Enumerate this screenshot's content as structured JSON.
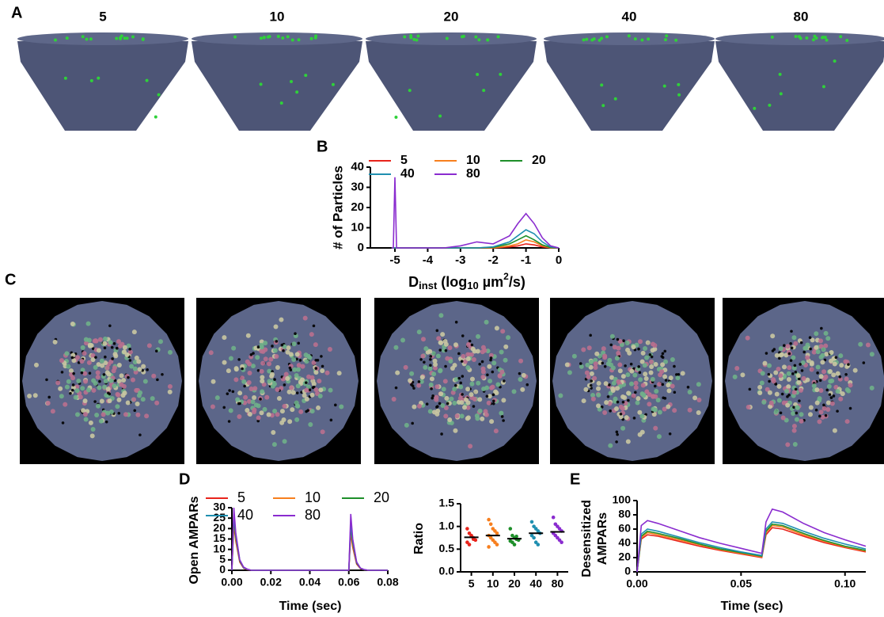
{
  "figure": {
    "panel_labels": [
      "A",
      "B",
      "C",
      "D",
      "E"
    ],
    "image_labels": [
      "5",
      "10",
      "20",
      "40",
      "80"
    ]
  },
  "chart_data": [
    {
      "type": "line",
      "ylabel": "# of Particles",
      "xlabel": [
        "D",
        "inst",
        " (log",
        "10",
        " µm",
        "2",
        "/s)"
      ],
      "x": [
        -5.1,
        -5.05,
        -5.0,
        -4.95,
        -4.9,
        -4.5,
        -4,
        -3.5,
        -3,
        -2.5,
        -2,
        -1.5,
        -1.25,
        -1,
        -0.75,
        -0.5,
        -0.25,
        0
      ],
      "xlim": [
        -5.75,
        0
      ],
      "xticks": [
        -5,
        -4,
        -3,
        -2,
        -1,
        0
      ],
      "ylim": [
        0,
        40
      ],
      "yticks": [
        0,
        10,
        20,
        30,
        40
      ],
      "series": [
        {
          "name": "5",
          "color": "#e8241c",
          "values": [
            0,
            0,
            0,
            0,
            0,
            0,
            0,
            0,
            0,
            0,
            0,
            0.5,
            1,
            2,
            1.5,
            0.5,
            0,
            0
          ]
        },
        {
          "name": "10",
          "color": "#f77f1e",
          "values": [
            0,
            0,
            0,
            0,
            0,
            0,
            0,
            0,
            0,
            0,
            0,
            1,
            2,
            4,
            3,
            1,
            0,
            0
          ]
        },
        {
          "name": "20",
          "color": "#1e8f2a",
          "values": [
            0,
            0,
            0,
            0,
            0,
            0,
            0,
            0,
            0,
            0,
            0.3,
            2,
            4,
            6,
            4,
            1.5,
            0.2,
            0
          ]
        },
        {
          "name": "40",
          "color": "#1f8fb0",
          "values": [
            0,
            0,
            0,
            0,
            0,
            0,
            0,
            0,
            0,
            0,
            0.5,
            3,
            6,
            9,
            7,
            3,
            0.5,
            0
          ]
        },
        {
          "name": "80",
          "color": "#8a2ccf",
          "values": [
            0,
            0,
            35,
            0,
            0,
            0,
            0,
            0,
            1,
            3,
            2,
            6,
            12,
            17,
            12,
            5,
            1,
            0
          ]
        }
      ]
    },
    {
      "type": "line",
      "ylabel": "Open AMPARs",
      "xlabel": "Time (sec)",
      "x": [
        0,
        0.001,
        0.002,
        0.004,
        0.006,
        0.008,
        0.01,
        0.06,
        0.061,
        0.062,
        0.064,
        0.066,
        0.068,
        0.07,
        0.08
      ],
      "xlim": [
        0,
        0.08
      ],
      "xticks": [
        {
          "value": 0,
          "label": "0.00"
        },
        0.02,
        0.04,
        0.06,
        0.08
      ],
      "ylim": [
        0,
        30
      ],
      "yticks": [
        0,
        5,
        10,
        15,
        20,
        25,
        30
      ],
      "series": [
        {
          "name": "5",
          "color": "#e8241c",
          "values": [
            0,
            22,
            14,
            4,
            1,
            0.3,
            0,
            0,
            18,
            11,
            3,
            0.8,
            0.2,
            0,
            0
          ]
        },
        {
          "name": "10",
          "color": "#f77f1e",
          "values": [
            0,
            24,
            15,
            4.5,
            1.2,
            0.4,
            0,
            0,
            20,
            12,
            3.5,
            0.9,
            0.2,
            0,
            0
          ]
        },
        {
          "name": "20",
          "color": "#1e8f2a",
          "values": [
            0,
            25,
            16,
            4.5,
            1.2,
            0.4,
            0,
            0,
            21,
            13,
            3.5,
            0.9,
            0.2,
            0,
            0
          ]
        },
        {
          "name": "40",
          "color": "#1f8fb0",
          "values": [
            0,
            27,
            17,
            5,
            1.3,
            0.4,
            0,
            0,
            23,
            14,
            4,
            1,
            0.3,
            0,
            0
          ]
        },
        {
          "name": "80",
          "color": "#8a2ccf",
          "values": [
            0,
            30,
            18,
            5,
            1.5,
            0.5,
            0,
            0,
            27,
            15,
            4,
            1,
            0.3,
            0,
            0
          ]
        }
      ]
    },
    {
      "type": "strip",
      "ylabel": "Ratio",
      "categories": [
        "5",
        "10",
        "20",
        "40",
        "80"
      ],
      "colors": [
        "#e8241c",
        "#f77f1e",
        "#1e8f2a",
        "#1f8fb0",
        "#8a2ccf"
      ],
      "values": [
        [
          0.95,
          0.85,
          0.8,
          0.75,
          0.7,
          0.65,
          0.6,
          0.78,
          0.72
        ],
        [
          1.15,
          1.05,
          0.95,
          0.9,
          0.85,
          0.8,
          0.75,
          0.7,
          0.65,
          0.6,
          0.55
        ],
        [
          0.95,
          0.8,
          0.75,
          0.72,
          0.7,
          0.68,
          0.65,
          0.6,
          0.78
        ],
        [
          1.1,
          1.0,
          0.95,
          0.9,
          0.85,
          0.8,
          0.75,
          0.65,
          0.6
        ],
        [
          1.2,
          1.05,
          1.0,
          0.95,
          0.9,
          0.85,
          0.8,
          0.75,
          0.7,
          0.65
        ]
      ],
      "means": [
        0.76,
        0.8,
        0.73,
        0.85,
        0.88
      ],
      "ylim": [
        0,
        1.5
      ],
      "yticks": [
        {
          "value": 0,
          "label": "0.0"
        },
        0.5,
        {
          "value": 1,
          "label": "1.0"
        },
        1.5
      ]
    },
    {
      "type": "line",
      "ylabel": [
        "Desensitized",
        "AMPARs"
      ],
      "xlabel": "Time (sec)",
      "x": [
        0,
        0.002,
        0.005,
        0.01,
        0.02,
        0.03,
        0.04,
        0.05,
        0.06,
        0.062,
        0.065,
        0.07,
        0.08,
        0.09,
        0.1,
        0.11
      ],
      "xlim": [
        0,
        0.11
      ],
      "xticks": [
        {
          "value": 0,
          "label": "0.00"
        },
        0.05,
        {
          "value": 0.1,
          "label": "0.10"
        }
      ],
      "ylim": [
        0,
        100
      ],
      "yticks": [
        0,
        20,
        40,
        60,
        80,
        100
      ],
      "series": [
        {
          "name": "5",
          "color": "#e8241c",
          "values": [
            0,
            46,
            52,
            50,
            43,
            36,
            30,
            25,
            20,
            52,
            62,
            60,
            50,
            41,
            34,
            28
          ]
        },
        {
          "name": "10",
          "color": "#f77f1e",
          "values": [
            0,
            48,
            55,
            52,
            45,
            38,
            31,
            26,
            21,
            55,
            65,
            63,
            52,
            43,
            35,
            29
          ]
        },
        {
          "name": "20",
          "color": "#1e8f2a",
          "values": [
            0,
            50,
            57,
            54,
            47,
            39,
            32,
            27,
            22,
            57,
            67,
            65,
            54,
            44,
            36,
            30
          ]
        },
        {
          "name": "40",
          "color": "#1f8fb0",
          "values": [
            0,
            53,
            60,
            57,
            49,
            41,
            34,
            28,
            23,
            60,
            70,
            68,
            57,
            47,
            39,
            32
          ]
        },
        {
          "name": "80",
          "color": "#8a2ccf",
          "values": [
            0,
            65,
            72,
            68,
            58,
            48,
            40,
            33,
            26,
            70,
            88,
            84,
            68,
            55,
            45,
            36
          ]
        }
      ]
    }
  ]
}
